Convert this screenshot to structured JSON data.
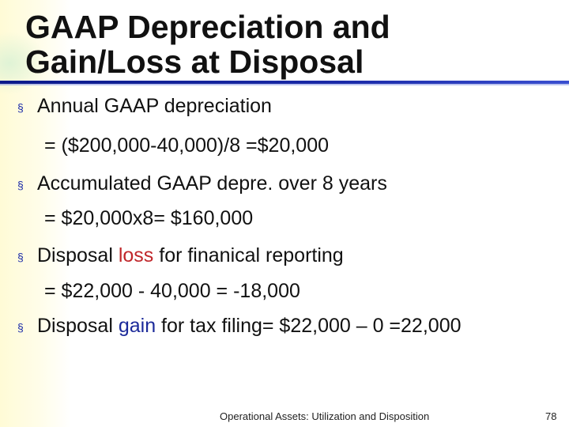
{
  "slide": {
    "title_line1": "GAAP Depreciation and",
    "title_line2": "Gain/Loss at Disposal",
    "bullet_glyph": "§",
    "bullets": [
      {
        "text": "Annual GAAP depreciation",
        "sub": "= ($200,000-40,000)/8 =$20,000"
      },
      {
        "text": "Accumulated GAAP depre. over 8 years",
        "sub": "= $20,000x8= $160,000"
      },
      {
        "text_before": "Disposal ",
        "highlight": "loss",
        "text_after": " for finanical reporting",
        "sub": "= $22,000 - 40,000 = -18,000"
      },
      {
        "text_before": "Disposal ",
        "highlight": "gain",
        "text_after": " for tax filing= $22,000 – 0 =22,000"
      }
    ],
    "footer": "Operational Assets: Utilization and Disposition",
    "page_number": "78"
  },
  "colors": {
    "title_rule": "#1a2aa8",
    "bullet": "#1a2aa8",
    "loss_highlight": "#c0262a",
    "gain_highlight": "#1c2a9a"
  }
}
